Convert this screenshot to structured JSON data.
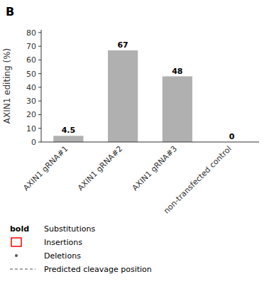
{
  "chart_data": {
    "type": "bar",
    "title": "B",
    "categories": [
      "AXIN1 gRNA#1",
      "AXIN1 gRNA#2",
      "AXIN1 gRNA#3",
      "non-transfected control"
    ],
    "values": [
      4.5,
      67,
      48,
      0
    ],
    "color": "#b0b0b0",
    "ylabel": "AXIN1 editing (%)",
    "ylim": [
      0,
      82
    ],
    "yticks": [
      0,
      10,
      20,
      30,
      40,
      50,
      60,
      70,
      80
    ],
    "grid": false,
    "data_labels": true,
    "annotations": [
      "bold",
      "Substitutions",
      "Insertions",
      "Deletions",
      "Predicted cleavage position"
    ]
  }
}
